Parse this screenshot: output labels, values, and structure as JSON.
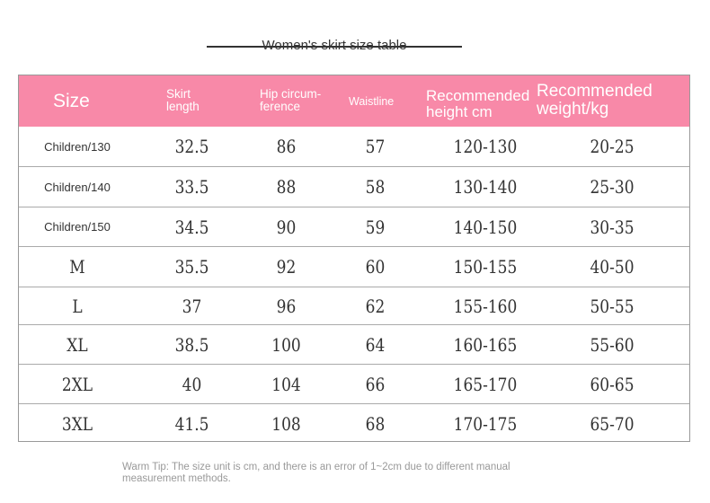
{
  "title": "Women's skirt size table",
  "header_color": "#f889a8",
  "headers": [
    "Size",
    "Skirt length",
    "Hip circum-ference",
    "Waistline",
    "Recommended height cm",
    "Recommended weight/kg"
  ],
  "header_lines": {
    "skirt": [
      "Skirt",
      "length"
    ],
    "hip": [
      "Hip circum-",
      "ference"
    ],
    "height": [
      "Recommended",
      "height cm"
    ],
    "weight": [
      "Recommended",
      "weight/kg"
    ]
  },
  "rows": [
    [
      "Children/130",
      "32.5",
      "86",
      "57",
      "120-130",
      "20-25"
    ],
    [
      "Children/140",
      "33.5",
      "88",
      "58",
      "130-140",
      "25-30"
    ],
    [
      "Children/150",
      "34.5",
      "90",
      "59",
      "140-150",
      "30-35"
    ],
    [
      "M",
      "35.5",
      "92",
      "60",
      "150-155",
      "40-50"
    ],
    [
      "L",
      "37",
      "96",
      "62",
      "155-160",
      "50-55"
    ],
    [
      "XL",
      "38.5",
      "100",
      "64",
      "160-165",
      "55-60"
    ],
    [
      "2XL",
      "40",
      "104",
      "66",
      "165-170",
      "60-65"
    ],
    [
      "3XL",
      "41.5",
      "108",
      "68",
      "170-175",
      "65-70"
    ]
  ],
  "tip": "Warm Tip: The size unit is cm, and there is an error of 1~2cm due to different manual measurement methods."
}
